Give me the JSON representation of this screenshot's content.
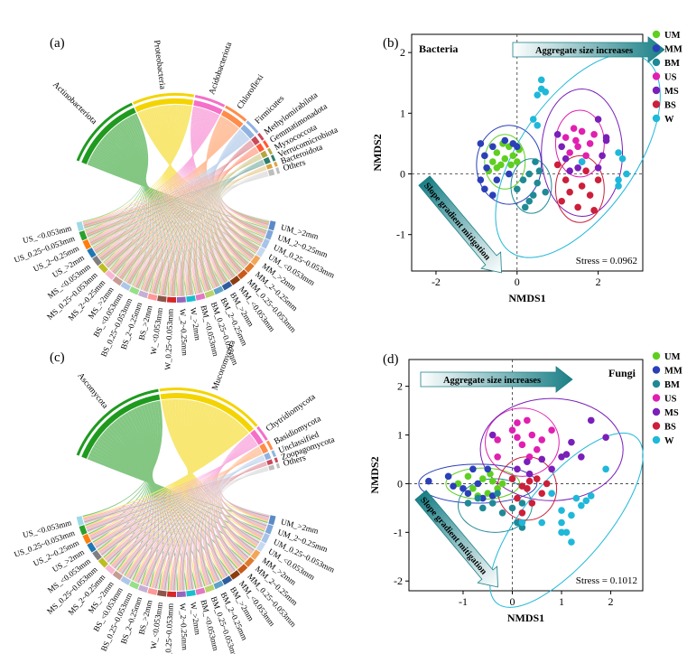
{
  "chords": [
    {
      "label": "(a)",
      "taxa": [
        "Actinobacteriota",
        "Proteobacteria",
        "Acidobacteriota",
        "Chloroflexi",
        "Firmicutes",
        "Methylomirabilota",
        "Gemmatimonadota",
        "Myxococcota",
        "Verrucomicrobiota",
        "Bacteroidota",
        "Others"
      ],
      "taxa_colors": [
        "#1f9a1f",
        "#f4d400",
        "#f56fc8",
        "#ff8c4a",
        "#8fb3e0",
        "#c94a5a",
        "#ff5a33",
        "#b5a642",
        "#2e7d6e",
        "#d9a441",
        "#bdbdbd"
      ],
      "taxa_weights": [
        26,
        20,
        10,
        8,
        5,
        2.5,
        2.5,
        2,
        2,
        1.5,
        2
      ],
      "samples": [
        "UM_>2mm",
        "UM_2~0.25mm",
        "UM_0.25~0.053mm",
        "UM_<0.053mm",
        "MM_>2mm",
        "MM_2~0.25mm",
        "MM_0.25~0.053mm",
        "MM_<0.053mm",
        "BM_>2mm",
        "BM_2~0.25mm",
        "BM_0.25~0.053mm",
        "BM_<0.053mm",
        "W_>2mm",
        "W_2~0.25mm",
        "W_0.25~0.053mm",
        "W_<0.053mm",
        "BS_>2mm",
        "BS_2~0.25mm",
        "BS_0.25~0.053mm",
        "BS_<0.053mm",
        "MS_>2mm",
        "MS_2~0.25mm",
        "MS_0.25~0.053mm",
        "MS_<0.053mm",
        "US_>2mm",
        "US_2~0.25mm",
        "US_0.25~0.053mm",
        "US_<0.053mm"
      ],
      "sample_colors": [
        "#5b8ac7",
        "#7fa7d9",
        "#a6c4e8",
        "#c7d9f0",
        "#f2a65a",
        "#e07a2e",
        "#c85a1a",
        "#8c3d0f",
        "#2e5c9e",
        "#5fa3c7",
        "#b8d46b",
        "#e377c2",
        "#17becf",
        "#9467bd",
        "#d62728",
        "#8c564b",
        "#ff9896",
        "#c5b0d5",
        "#98df8a",
        "#aec7e8",
        "#c49c94",
        "#f7b6d2",
        "#bcbd22",
        "#7f7f7f",
        "#1f77b4",
        "#ff7f0e",
        "#2ca02c",
        "#9edae5"
      ]
    },
    {
      "label": "(c)",
      "taxa": [
        "Ascomycota",
        "Mucoromycota",
        "Chytridiomycota",
        "Basidiomycota",
        "Unclassified",
        "Zoopagomycota",
        "Others"
      ],
      "taxa_colors": [
        "#1f9a1f",
        "#f4d400",
        "#f56fc8",
        "#ff8c4a",
        "#8fb3e0",
        "#c94a5a",
        "#bdbdbd"
      ],
      "taxa_weights": [
        34,
        34,
        5,
        3,
        2,
        1.5,
        1.5
      ],
      "samples": [
        "UM_>2mm",
        "UM_2~0.25mm",
        "UM_0.25~0.053mm",
        "UM_<0.053mm",
        "MM_>2mm",
        "MM_2~0.25mm",
        "MM_0.25~0.053mm",
        "MM_<0.053mm",
        "BM_>2mm",
        "BM_2~0.25mm",
        "BM_0.25~0.053mm",
        "BM_<0.053mm",
        "W_>2mm",
        "W_2~0.25mm",
        "W_0.25~0.053mm",
        "W_<0.053mm",
        "BS_>2mm",
        "BS_2~0.25mm",
        "BS_0.25~0.053mm",
        "BS_<0.053mm",
        "MS_>2mm",
        "MS_2~0.25mm",
        "MS_0.25~0.053mm",
        "MS_<0.053mm",
        "US_>2mm",
        "US_2~0.25mm",
        "US_0.25~0.053mm",
        "US_<0.053mm"
      ],
      "sample_colors": [
        "#5b8ac7",
        "#7fa7d9",
        "#a6c4e8",
        "#c7d9f0",
        "#f2a65a",
        "#e07a2e",
        "#c85a1a",
        "#8c3d0f",
        "#2e5c9e",
        "#5fa3c7",
        "#b8d46b",
        "#e377c2",
        "#17becf",
        "#9467bd",
        "#d62728",
        "#8c564b",
        "#ff9896",
        "#c5b0d5",
        "#98df8a",
        "#aec7e8",
        "#c49c94",
        "#f7b6d2",
        "#bcbd22",
        "#7f7f7f",
        "#1f77b4",
        "#ff7f0e",
        "#2ca02c",
        "#9edae5"
      ]
    }
  ],
  "chart_data": [
    {
      "type": "scatter",
      "label": "(b)",
      "title": "Bacteria",
      "xlabel": "NMDS1",
      "ylabel": "NMDS2",
      "xlim": [
        -2.6,
        3.1
      ],
      "ylim": [
        -1.6,
        2.3
      ],
      "xticks": [
        -2,
        0,
        2
      ],
      "yticks": [
        -1,
        0,
        1,
        2
      ],
      "stress": "Stress = 0.0962",
      "arrow_top": "Aggregate size increases",
      "arrow_side": "Slope gradient mitigation",
      "series": [
        {
          "name": "UM",
          "color": "#5fcf1f",
          "points": [
            [
              -0.6,
              0.2
            ],
            [
              -0.5,
              0.35
            ],
            [
              -0.4,
              0.15
            ],
            [
              -0.3,
              0.25
            ],
            [
              -0.2,
              0.45
            ],
            [
              -0.1,
              0.3
            ],
            [
              0,
              0.2
            ],
            [
              -0.7,
              0.05
            ],
            [
              -0.5,
              0.1
            ],
            [
              -0.35,
              0.5
            ],
            [
              -0.15,
              0.15
            ],
            [
              0.05,
              0.4
            ]
          ]
        },
        {
          "name": "MM",
          "color": "#2a3fb8",
          "points": [
            [
              -0.9,
              0.5
            ],
            [
              -0.8,
              0.3
            ],
            [
              -0.9,
              -0.1
            ],
            [
              -0.8,
              -0.25
            ],
            [
              -0.6,
              -0.35
            ],
            [
              -0.3,
              0.55
            ],
            [
              -0.1,
              0.5
            ],
            [
              0,
              0.45
            ],
            [
              -0.5,
              -0.1
            ],
            [
              -0.75,
              0.1
            ],
            [
              -0.2,
              0.0
            ],
            [
              -0.6,
              0.45
            ]
          ]
        },
        {
          "name": "BM",
          "color": "#1f8a96",
          "points": [
            [
              0.0,
              -0.25
            ],
            [
              0.2,
              -0.55
            ],
            [
              0.4,
              -0.35
            ],
            [
              0.5,
              -0.15
            ],
            [
              0.3,
              0.0
            ],
            [
              0.15,
              -0.1
            ],
            [
              0.7,
              -0.3
            ],
            [
              0.45,
              0.2
            ],
            [
              0.3,
              -0.45
            ],
            [
              0.55,
              0.05
            ]
          ]
        },
        {
          "name": "US",
          "color": "#e020b0",
          "points": [
            [
              1.2,
              0.6
            ],
            [
              1.4,
              0.75
            ],
            [
              1.6,
              0.7
            ],
            [
              1.8,
              0.5
            ],
            [
              1.3,
              0.35
            ],
            [
              1.5,
              0.45
            ],
            [
              1.7,
              0.3
            ],
            [
              1.9,
              0.65
            ],
            [
              1.45,
              0.55
            ],
            [
              1.6,
              0.2
            ]
          ]
        },
        {
          "name": "MS",
          "color": "#7a1fb8",
          "points": [
            [
              1.0,
              0.65
            ],
            [
              1.1,
              0.45
            ],
            [
              1.2,
              0.25
            ],
            [
              2.0,
              0.9
            ],
            [
              2.2,
              0.6
            ],
            [
              2.1,
              0.3
            ],
            [
              1.5,
              0.1
            ],
            [
              2.0,
              0.1
            ],
            [
              1.3,
              0.05
            ],
            [
              2.2,
              0.55
            ]
          ]
        },
        {
          "name": "BS",
          "color": "#cc1f3a",
          "points": [
            [
              1.0,
              0.15
            ],
            [
              1.2,
              -0.1
            ],
            [
              1.3,
              -0.3
            ],
            [
              1.6,
              -0.2
            ],
            [
              1.8,
              -0.35
            ],
            [
              1.5,
              -0.55
            ],
            [
              1.9,
              -0.6
            ],
            [
              2.0,
              -0.1
            ],
            [
              1.7,
              0.05
            ],
            [
              1.1,
              -0.45
            ]
          ]
        },
        {
          "name": "W",
          "color": "#1fb8d9",
          "points": [
            [
              0.5,
              1.3
            ],
            [
              0.6,
              1.4
            ],
            [
              0.7,
              1.35
            ],
            [
              0.6,
              1.55
            ],
            [
              0.4,
              0.9
            ],
            [
              0.5,
              0.8
            ],
            [
              1.6,
              0.2
            ],
            [
              2.5,
              0.35
            ],
            [
              2.6,
              0.25
            ],
            [
              2.5,
              -0.1
            ],
            [
              2.7,
              0.0
            ],
            [
              2.5,
              -0.2
            ]
          ]
        }
      ]
    },
    {
      "type": "scatter",
      "label": "(d)",
      "title": "Fungi",
      "xlabel": "NMDS1",
      "ylabel": "NMDS2",
      "xlim": [
        -2.1,
        2.65
      ],
      "ylim": [
        -2.2,
        2.55
      ],
      "xticks": [
        -1,
        0,
        1,
        2
      ],
      "yticks": [
        -2,
        -1,
        0,
        1,
        2
      ],
      "stress": "Stress = 0.1012",
      "arrow_top": "Aggregate size increases",
      "arrow_side": "Slope gradient mitigation",
      "series": [
        {
          "name": "UM",
          "color": "#5fcf1f",
          "points": [
            [
              -1.1,
              0.0
            ],
            [
              -0.8,
              -0.1
            ],
            [
              -0.6,
              0.1
            ],
            [
              -0.4,
              0.05
            ],
            [
              -0.5,
              -0.2
            ],
            [
              -0.3,
              -0.1
            ],
            [
              -0.9,
              0.15
            ],
            [
              -0.7,
              -0.25
            ],
            [
              -0.2,
              0.0
            ],
            [
              -0.45,
              0.2
            ]
          ]
        },
        {
          "name": "MM",
          "color": "#2a3fb8",
          "points": [
            [
              -1.7,
              0.05
            ],
            [
              -1.3,
              0.15
            ],
            [
              -1.0,
              -0.1
            ],
            [
              -0.9,
              -0.2
            ],
            [
              -0.6,
              -0.3
            ],
            [
              -0.8,
              0.3
            ],
            [
              -0.5,
              0.3
            ],
            [
              -1.2,
              -0.05
            ],
            [
              -0.4,
              -0.25
            ],
            [
              -0.7,
              0.0
            ]
          ]
        },
        {
          "name": "BM",
          "color": "#1f8a96",
          "points": [
            [
              -0.9,
              -0.4
            ],
            [
              -0.6,
              -0.5
            ],
            [
              -0.4,
              -0.4
            ],
            [
              -0.2,
              -0.6
            ],
            [
              0.1,
              -0.8
            ],
            [
              0.2,
              -0.9
            ],
            [
              -0.3,
              -0.2
            ],
            [
              0.0,
              -0.5
            ],
            [
              0.2,
              -0.4
            ],
            [
              -0.7,
              -0.3
            ]
          ]
        },
        {
          "name": "US",
          "color": "#e020b0",
          "points": [
            [
              -0.3,
              0.9
            ],
            [
              0.0,
              1.1
            ],
            [
              0.1,
              1.25
            ],
            [
              0.3,
              1.3
            ],
            [
              0.4,
              1.0
            ],
            [
              0.8,
              1.1
            ],
            [
              0.2,
              0.8
            ],
            [
              0.5,
              0.7
            ],
            [
              -0.3,
              0.55
            ],
            [
              0.35,
              0.55
            ],
            [
              0.6,
              0.9
            ],
            [
              0.1,
              0.95
            ]
          ]
        },
        {
          "name": "MS",
          "color": "#7a1fb8",
          "points": [
            [
              -0.4,
              1.0
            ],
            [
              0.1,
              0.3
            ],
            [
              0.35,
              0.2
            ],
            [
              0.6,
              0.5
            ],
            [
              1.0,
              0.55
            ],
            [
              1.2,
              0.85
            ],
            [
              1.6,
              1.3
            ],
            [
              1.9,
              0.95
            ],
            [
              1.4,
              0.55
            ],
            [
              0.8,
              0.3
            ],
            [
              0.3,
              0.45
            ],
            [
              1.1,
              0.6
            ]
          ]
        },
        {
          "name": "BS",
          "color": "#cc1f3a",
          "points": [
            [
              0.0,
              0.1
            ],
            [
              0.2,
              -0.05
            ],
            [
              0.1,
              -0.3
            ],
            [
              0.3,
              -0.1
            ],
            [
              0.5,
              0.1
            ],
            [
              0.7,
              0.0
            ],
            [
              0.4,
              -0.4
            ],
            [
              0.2,
              -0.6
            ],
            [
              0.6,
              -0.2
            ],
            [
              0.35,
              0.05
            ]
          ]
        },
        {
          "name": "W",
          "color": "#1fb8d9",
          "points": [
            [
              0.2,
              -0.8
            ],
            [
              0.8,
              -0.2
            ],
            [
              1.0,
              -0.8
            ],
            [
              1.1,
              -1.0
            ],
            [
              1.2,
              -1.2
            ],
            [
              1.3,
              -0.3
            ],
            [
              1.4,
              -0.45
            ],
            [
              1.5,
              -0.35
            ],
            [
              1.6,
              -0.25
            ],
            [
              1.0,
              -0.55
            ],
            [
              1.2,
              -0.65
            ],
            [
              1.9,
              0.3
            ],
            [
              0.6,
              -0.8
            ],
            [
              1.0,
              -1.0
            ]
          ]
        }
      ]
    }
  ]
}
